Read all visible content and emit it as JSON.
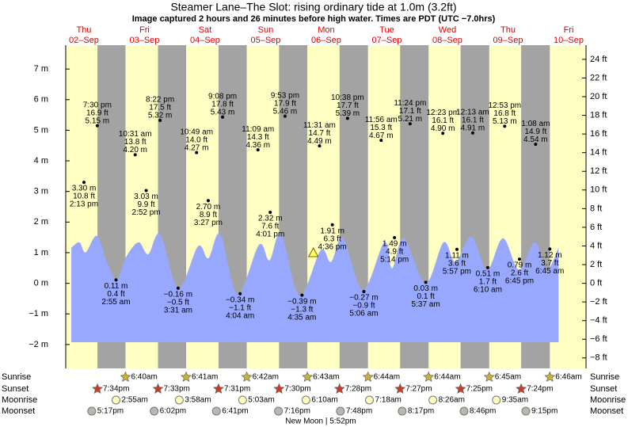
{
  "chart_data": {
    "type": "tide",
    "title": "Steamer Lane–The Slot: rising  ordinary tide at 1.0m (3.2ft)",
    "subtitle": "Image captured 2 hours and 26 minutes before high water. Times are PDT (UTC −7.0hrs)",
    "ylim": [
      -2.78,
      7.78
    ],
    "yticks": [
      {
        "value": -2,
        "label": "−2 m"
      },
      {
        "value": -1,
        "label": "−1 m"
      },
      {
        "value": 0,
        "label": "0 m"
      },
      {
        "value": 1,
        "label": "1 m"
      },
      {
        "value": 2,
        "label": "2 m"
      },
      {
        "value": 3,
        "label": "3 m"
      },
      {
        "value": 4,
        "label": "4 m"
      },
      {
        "value": 5,
        "label": "5 m"
      },
      {
        "value": 6,
        "label": "6 m"
      },
      {
        "value": 7,
        "label": "7 m"
      }
    ],
    "y2lim": [
      -9.12,
      25.52
    ],
    "y2ticks": [
      {
        "value": -8,
        "label": "−8 ft"
      },
      {
        "value": -6,
        "label": "−6 ft"
      },
      {
        "value": -4,
        "label": "−4 ft"
      },
      {
        "value": -2,
        "label": "−2 ft"
      },
      {
        "value": 0,
        "label": "0 ft"
      },
      {
        "value": 2,
        "label": "2 ft"
      },
      {
        "value": 4,
        "label": "4 ft"
      },
      {
        "value": 6,
        "label": "6 ft"
      },
      {
        "value": 8,
        "label": "8 ft"
      },
      {
        "value": 10,
        "label": "10 ft"
      },
      {
        "value": 12,
        "label": "12 ft"
      },
      {
        "value": 14,
        "label": "14 ft"
      },
      {
        "value": 16,
        "label": "16 ft"
      },
      {
        "value": 18,
        "label": "18 ft"
      },
      {
        "value": 20,
        "label": "20 ft"
      },
      {
        "value": 22,
        "label": "22 ft"
      },
      {
        "value": 24,
        "label": "24 ft"
      }
    ],
    "xlim": [
      7.0,
      213.1
    ],
    "colors": {
      "day": "#ffffc4",
      "night": "#a3a3a3",
      "water": "#99a8ff",
      "header": "#e00000"
    },
    "rows": [
      "Sunrise",
      "Sunset",
      "Moonrise",
      "Moonset"
    ],
    "curve": {
      "x": [
        9.2,
        12.4,
        14.9,
        19.3,
        23.3,
        27.1,
        31.2,
        35.9,
        39.7,
        44.4,
        51.6,
        59.4,
        63.5,
        68.2,
        75.1,
        83.6,
        87.7,
        92.3,
        99.6,
        108.0,
        112.1,
        116.8,
        124.7,
        133.2,
        136.3,
        141.0,
        149.5,
        156.7,
        161.4,
        167.7,
        173.9,
        180.2,
        186.5,
        192.8,
        197.5,
        202.2
      ],
      "values": [
        1.16,
        1.34,
        1.01,
        1.55,
        0.7,
        0.13,
        0.9,
        1.34,
        0.95,
        1.6,
        -0.15,
        1.21,
        0.82,
        1.6,
        -0.34,
        1.26,
        0.75,
        1.6,
        -0.39,
        1.08,
        0.7,
        1.47,
        -0.21,
        1.34,
        0.49,
        1.47,
        0.0,
        1.34,
        0.7,
        1.52,
        0.44,
        1.47,
        0.44,
        1.34,
        0.44,
        1.16
      ]
    },
    "now_marker": {
      "x": 105.1,
      "m": 1.0
    },
    "days": [
      {
        "weekday": "Thu",
        "date": "02–Sep",
        "sunrise": null,
        "sunset": "7:34pm",
        "moonrise": null,
        "moonset": "5:17pm",
        "tides": [
          {
            "time": "2:13 pm",
            "m": 3.3,
            "m_label": "3.30 m",
            "ft": 10.8,
            "ft_label": "10.8 ft"
          },
          {
            "time": "7:30 pm",
            "m": 5.15,
            "m_label": "5.15 m",
            "ft": 16.9,
            "ft_label": "16.9 ft"
          }
        ]
      },
      {
        "weekday": "Fri",
        "date": "03–Sep",
        "sunrise": "6:40am",
        "sunset": "7:33pm",
        "moonrise": "2:55am",
        "moonset": "6:02pm",
        "tides": [
          {
            "time": "2:55 am",
            "m": 0.11,
            "m_label": "0.11 m",
            "ft": 0.4,
            "ft_label": "0.4 ft"
          },
          {
            "time": "10:31 am",
            "m": 4.2,
            "m_label": "4.20 m",
            "ft": 13.8,
            "ft_label": "13.8 ft"
          },
          {
            "time": "2:52 pm",
            "m": 3.03,
            "m_label": "3.03 m",
            "ft": 9.9,
            "ft_label": "9.9 ft"
          },
          {
            "time": "8:22 pm",
            "m": 5.32,
            "m_label": "5.32 m",
            "ft": 17.5,
            "ft_label": "17.5 ft"
          }
        ]
      },
      {
        "weekday": "Sat",
        "date": "04–Sep",
        "sunrise": "6:41am",
        "sunset": "7:31pm",
        "moonrise": "3:58am",
        "moonset": "6:41pm",
        "tides": [
          {
            "time": "3:31 am",
            "m": -0.16,
            "m_label": "−0.16 m",
            "ft": -0.5,
            "ft_label": "−0.5 ft"
          },
          {
            "time": "10:49 am",
            "m": 4.27,
            "m_label": "4.27 m",
            "ft": 14.0,
            "ft_label": "14.0 ft"
          },
          {
            "time": "3:27 pm",
            "m": 2.7,
            "m_label": "2.70 m",
            "ft": 8.9,
            "ft_label": "8.9 ft"
          },
          {
            "time": "9:08 pm",
            "m": 5.43,
            "m_label": "5.43 m",
            "ft": 17.8,
            "ft_label": "17.8 ft"
          }
        ]
      },
      {
        "weekday": "Sun",
        "date": "05–Sep",
        "sunrise": "6:42am",
        "sunset": "7:30pm",
        "moonrise": "5:03am",
        "moonset": "7:16pm",
        "tides": [
          {
            "time": "4:04 am",
            "m": -0.34,
            "m_label": "−0.34 m",
            "ft": -1.1,
            "ft_label": "−1.1 ft"
          },
          {
            "time": "11:09 am",
            "m": 4.36,
            "m_label": "4.36 m",
            "ft": 14.3,
            "ft_label": "14.3 ft"
          },
          {
            "time": "4:01 pm",
            "m": 2.32,
            "m_label": "2.32 m",
            "ft": 7.6,
            "ft_label": "7.6 ft"
          },
          {
            "time": "9:53 pm",
            "m": 5.46,
            "m_label": "5.46 m",
            "ft": 17.9,
            "ft_label": "17.9 ft"
          }
        ]
      },
      {
        "weekday": "Mon",
        "date": "06–Sep",
        "sunrise": "6:43am",
        "sunset": "7:28pm",
        "moonrise": "6:10am",
        "moonset": "7:48pm",
        "moon_phase": "New Moon | 5:52pm",
        "tides": [
          {
            "time": "4:35 am",
            "m": -0.39,
            "m_label": "−0.39 m",
            "ft": -1.3,
            "ft_label": "−1.3 ft"
          },
          {
            "time": "11:31 am",
            "m": 4.49,
            "m_label": "4.49 m",
            "ft": 14.7,
            "ft_label": "14.7 ft"
          },
          {
            "time": "4:36 pm",
            "m": 1.91,
            "m_label": "1.91 m",
            "ft": 6.3,
            "ft_label": "6.3 ft"
          },
          {
            "time": "10:38 pm",
            "m": 5.39,
            "m_label": "5.39 m",
            "ft": 17.7,
            "ft_label": "17.7 ft"
          }
        ]
      },
      {
        "weekday": "Tue",
        "date": "07–Sep",
        "sunrise": "6:44am",
        "sunset": "7:27pm",
        "moonrise": "7:18am",
        "moonset": "8:17pm",
        "tides": [
          {
            "time": "5:06 am",
            "m": -0.27,
            "m_label": "−0.27 m",
            "ft": -0.9,
            "ft_label": "−0.9 ft"
          },
          {
            "time": "11:56 am",
            "m": 4.67,
            "m_label": "4.67 m",
            "ft": 15.3,
            "ft_label": "15.3 ft"
          },
          {
            "time": "5:14 pm",
            "m": 1.49,
            "m_label": "1.49 m",
            "ft": 4.9,
            "ft_label": "4.9 ft"
          },
          {
            "time": "11:24 pm",
            "m": 5.21,
            "m_label": "5.21 m",
            "ft": 17.1,
            "ft_label": "17.1 ft"
          }
        ]
      },
      {
        "weekday": "Wed",
        "date": "08–Sep",
        "sunrise": "6:44am",
        "sunset": "7:25pm",
        "moonrise": "8:26am",
        "moonset": "8:46pm",
        "tides": [
          {
            "time": "5:37 am",
            "m": 0.03,
            "m_label": "0.03 m",
            "ft": 0.1,
            "ft_label": "0.1 ft"
          },
          {
            "time": "12:23 pm",
            "m": 4.9,
            "m_label": "4.90 m",
            "ft": 16.1,
            "ft_label": "16.1 ft"
          },
          {
            "time": "5:57 pm",
            "m": 1.11,
            "m_label": "1.11 m",
            "ft": 3.6,
            "ft_label": "3.6 ft"
          }
        ]
      },
      {
        "weekday": "Thu",
        "date": "09–Sep",
        "sunrise": "6:45am",
        "sunset": "7:24pm",
        "moonrise": "9:35am",
        "moonset": "9:15pm",
        "tides": [
          {
            "time": "12:13 am",
            "m": 4.91,
            "m_label": "4.91 m",
            "ft": 16.1,
            "ft_label": "16.1 ft"
          },
          {
            "time": "6:10 am",
            "m": 0.51,
            "m_label": "0.51 m",
            "ft": 1.7,
            "ft_label": "1.7 ft"
          },
          {
            "time": "12:53 pm",
            "m": 5.13,
            "m_label": "5.13 m",
            "ft": 16.8,
            "ft_label": "16.8 ft"
          },
          {
            "time": "6:45 pm",
            "m": 0.79,
            "m_label": "0.79 m",
            "ft": 2.6,
            "ft_label": "2.6 ft"
          }
        ]
      },
      {
        "weekday": "Fri",
        "date": "10–Sep",
        "sunrise": "6:46am",
        "sunset": null,
        "moonrise": null,
        "moonset": null,
        "tides": [
          {
            "time": "1:08 am",
            "m": 4.54,
            "m_label": "4.54 m",
            "ft": 14.9,
            "ft_label": "14.9 ft"
          },
          {
            "time": "6:45 am",
            "m": 1.12,
            "m_label": "1.12 m",
            "ft": 3.7,
            "ft_label": "3.7 ft"
          }
        ]
      }
    ]
  }
}
